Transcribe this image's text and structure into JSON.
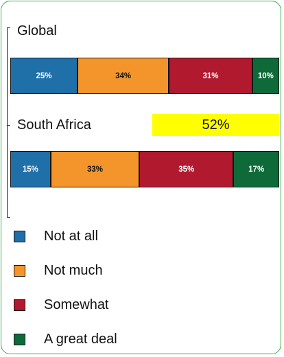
{
  "chart_data": {
    "type": "bar",
    "stacked": true,
    "orientation": "horizontal",
    "categories": [
      "Global",
      "South Africa"
    ],
    "series": [
      {
        "name": "Not at all",
        "color": "#1f6fa8",
        "values": [
          25,
          15
        ],
        "labels": [
          "25%",
          "15%"
        ]
      },
      {
        "name": "Not much",
        "color": "#f4952c",
        "values": [
          34,
          33
        ],
        "labels": [
          "34%",
          "33%"
        ]
      },
      {
        "name": "Somewhat",
        "color": "#b0192e",
        "values": [
          31,
          35
        ],
        "labels": [
          "31%",
          "35%"
        ]
      },
      {
        "name": "A great deal",
        "color": "#0f6a3a",
        "values": [
          10,
          17
        ],
        "labels": [
          "10%",
          "17%"
        ]
      }
    ],
    "annotation": {
      "text": "52%",
      "color": "#ffff00"
    },
    "legend": "bottom-left"
  }
}
